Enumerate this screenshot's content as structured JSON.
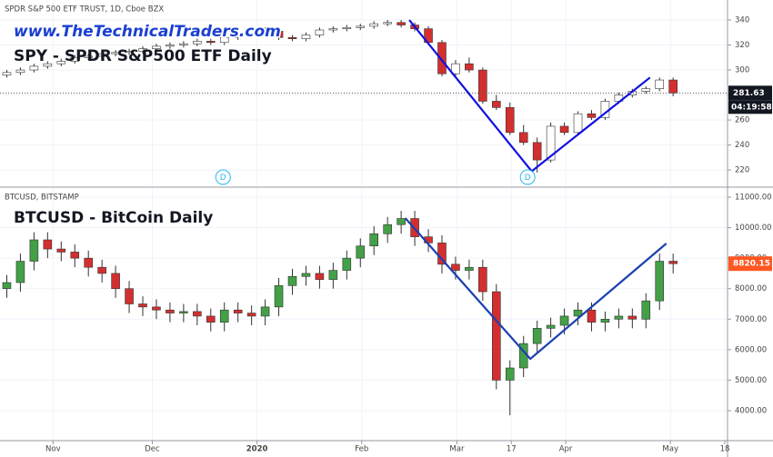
{
  "chart_data": [
    {
      "type": "candlestick",
      "header": "SPDR S&P 500 ETF TRUST, 1D, Cboe BZX",
      "watermark": "www.TheTechnicalTraders.com",
      "title": "SPY - SPDR S&P500 ETF Daily",
      "up_color": "#ffffff",
      "down_color": "#d32f2f",
      "outline_color": "#333333",
      "trend_color": "#1010e0",
      "xlim": [
        0,
        53.5
      ],
      "ylim": [
        207,
        356
      ],
      "yticks": [
        220,
        240,
        260,
        280,
        300,
        320,
        340
      ],
      "open": [
        296,
        298,
        300,
        303,
        305,
        307,
        310,
        311,
        313,
        314,
        315,
        317,
        319,
        320,
        321,
        323,
        322,
        326,
        329,
        332,
        331,
        326,
        325,
        328,
        332,
        333,
        334,
        335,
        337,
        338,
        336,
        333,
        322,
        297,
        305,
        300,
        275,
        270,
        250,
        242,
        228,
        255,
        250,
        265,
        262,
        275,
        280,
        283,
        285,
        292
      ],
      "high": [
        300,
        302,
        305,
        307,
        309,
        312,
        313,
        315,
        316,
        317,
        319,
        321,
        322,
        323,
        325,
        325,
        328,
        331,
        334,
        334,
        333,
        328,
        330,
        334,
        335,
        336,
        337,
        339,
        340,
        340,
        338,
        335,
        324,
        308,
        310,
        302,
        280,
        274,
        256,
        246,
        258,
        258,
        267,
        268,
        277,
        282,
        285,
        287,
        294,
        294
      ],
      "low": [
        294,
        296,
        298,
        301,
        303,
        305,
        308,
        309,
        311,
        312,
        313,
        315,
        317,
        318,
        319,
        320,
        320,
        324,
        327,
        329,
        324,
        323,
        323,
        326,
        330,
        331,
        332,
        333,
        335,
        334,
        331,
        320,
        295,
        295,
        298,
        273,
        268,
        248,
        240,
        218,
        226,
        248,
        248,
        260,
        260,
        273,
        278,
        281,
        283,
        279
      ],
      "close": [
        298,
        300,
        303,
        305,
        307,
        310,
        311,
        313,
        314,
        315,
        317,
        319,
        320,
        321,
        323,
        322,
        326,
        329,
        332,
        331,
        326,
        325,
        328,
        332,
        333,
        334,
        335,
        337,
        338,
        336,
        333,
        322,
        297,
        305,
        300,
        275,
        270,
        250,
        242,
        228,
        255,
        250,
        265,
        262,
        275,
        280,
        283,
        285,
        292,
        281.63
      ],
      "last_value": 281.63,
      "countdown": "04:19:58",
      "trendline": {
        "x": [
          30.1,
          39.1,
          47.8
        ],
        "y": [
          340,
          219,
          294
        ]
      },
      "events": [
        {
          "label": "D",
          "x": 16.4
        },
        {
          "label": "D",
          "x": 38.8
        }
      ]
    },
    {
      "type": "candlestick",
      "header": "BTCUSD, BITSTAMP",
      "title": "BTCUSD - BitCoin Daily",
      "up_color": "#43a047",
      "down_color": "#d32f2f",
      "outline_color": "#333333",
      "trend_color": "#1a3fb0",
      "xlim": [
        0,
        53.5
      ],
      "xticks": [
        {
          "value": 3.9,
          "label": "Nov"
        },
        {
          "value": 11.2,
          "label": "Dec"
        },
        18.9,
        {
          "value": 26.6,
          "label": "Feb"
        },
        {
          "value": 33.6,
          "label": "Mar"
        },
        {
          "value": 37.6,
          "label": "17"
        },
        {
          "value": 41.6,
          "label": "Apr"
        },
        {
          "value": 49.3,
          "label": "May"
        },
        {
          "value": 53.3,
          "label": "18"
        }
      ],
      "xtick_2020_label": "2020",
      "ylim": [
        3017,
        11298
      ],
      "yticks": [
        {
          "value": 4000,
          "label": "4000.00"
        },
        {
          "value": 5000,
          "label": "5000.00"
        },
        {
          "value": 6000,
          "label": "6000.00"
        },
        {
          "value": 7000,
          "label": "7000.00"
        },
        {
          "value": 8000,
          "label": "8000.00"
        },
        {
          "value": 9000,
          "label": "9000.00"
        },
        {
          "value": 10000,
          "label": "10000.00"
        },
        {
          "value": 11000,
          "label": "11000.00"
        }
      ],
      "open": [
        8000,
        8200,
        8900,
        9600,
        9300,
        9200,
        9000,
        8700,
        8500,
        8000,
        7500,
        7400,
        7300,
        7200,
        7250,
        7100,
        6900,
        7300,
        7200,
        7100,
        7400,
        8100,
        8400,
        8500,
        8300,
        8600,
        9000,
        9400,
        9800,
        10100,
        10300,
        9700,
        9500,
        8800,
        8600,
        8700,
        7900,
        5000,
        5400,
        6200,
        6700,
        6800,
        7100,
        7300,
        6900,
        7000,
        7100,
        7000,
        7600,
        8900
      ],
      "high": [
        8450,
        9150,
        9850,
        9850,
        9550,
        9450,
        9250,
        8950,
        8750,
        8250,
        7750,
        7650,
        7550,
        7500,
        7500,
        7350,
        7550,
        7550,
        7450,
        7650,
        8350,
        8650,
        8750,
        8750,
        8850,
        9250,
        9650,
        10050,
        10350,
        10550,
        10550,
        9950,
        9750,
        9050,
        8950,
        8950,
        8150,
        5650,
        6450,
        6950,
        7050,
        7350,
        7550,
        7550,
        7250,
        7350,
        7350,
        7850,
        9150,
        9150
      ],
      "low": [
        7700,
        7900,
        8600,
        9000,
        8900,
        8700,
        8400,
        8200,
        7700,
        7200,
        7100,
        7000,
        6900,
        6900,
        6800,
        6600,
        6600,
        6900,
        6800,
        6800,
        7100,
        7800,
        8100,
        8000,
        8000,
        8300,
        8700,
        9100,
        9500,
        9800,
        9400,
        9200,
        8500,
        8300,
        8300,
        7600,
        4700,
        3850,
        5100,
        5900,
        6400,
        6500,
        6800,
        6600,
        6600,
        6700,
        6700,
        6700,
        7300,
        8500
      ],
      "close": [
        8200,
        8900,
        9600,
        9300,
        9200,
        9000,
        8700,
        8500,
        8000,
        7500,
        7400,
        7300,
        7200,
        7250,
        7100,
        6900,
        7300,
        7200,
        7100,
        7400,
        8100,
        8400,
        8500,
        8300,
        8600,
        9000,
        9400,
        9800,
        10100,
        10300,
        9700,
        9500,
        8800,
        8600,
        8700,
        7900,
        5000,
        5400,
        6200,
        6700,
        6800,
        7100,
        7300,
        6900,
        7000,
        7100,
        7000,
        7600,
        8900,
        8820.15
      ],
      "last_value": 8820.15,
      "trendline": {
        "x": [
          29.8,
          39.0,
          49.0
        ],
        "y": [
          10315,
          5698,
          9481
        ]
      }
    }
  ]
}
